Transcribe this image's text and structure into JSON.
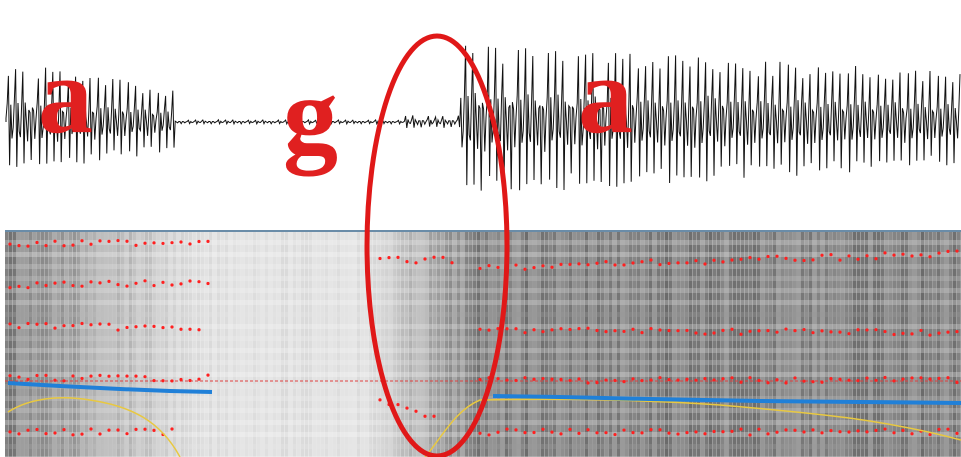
{
  "segments": [
    {
      "label": "a"
    },
    {
      "label": "g"
    },
    {
      "label": "a"
    }
  ]
}
